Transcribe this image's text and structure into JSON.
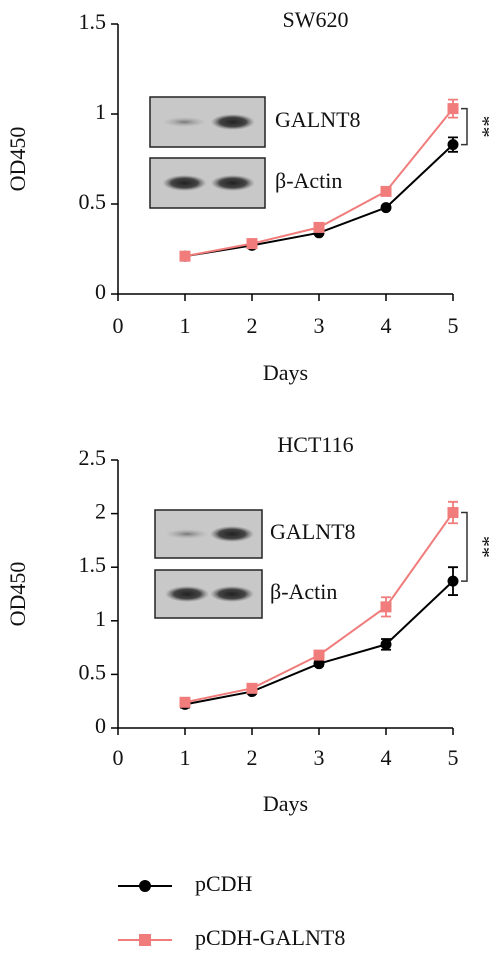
{
  "chart_data": [
    {
      "type": "line",
      "title": "SW620",
      "x_label": "Days",
      "y_label": "OD450",
      "x": [
        1,
        2,
        3,
        4,
        5
      ],
      "xlim": [
        0,
        5
      ],
      "xticks": [
        0,
        1,
        2,
        3,
        4,
        5
      ],
      "ylim": [
        0,
        1.5
      ],
      "yticks": [
        0,
        0.5,
        1,
        1.5
      ],
      "blot_labels": [
        "GALNT8",
        "β-Actin"
      ],
      "significance": "**",
      "series": [
        {
          "name": "pCDH",
          "color": "#000000",
          "marker": "circle",
          "values": [
            0.21,
            0.27,
            0.34,
            0.48,
            0.83
          ],
          "errors": [
            0.02,
            0.01,
            0.01,
            0.01,
            0.04
          ]
        },
        {
          "name": "pCDH-GALNT8",
          "color": "#f07c7c",
          "marker": "square",
          "values": [
            0.21,
            0.28,
            0.37,
            0.57,
            1.03
          ],
          "errors": [
            0.02,
            0.02,
            0.01,
            0.01,
            0.05
          ]
        }
      ]
    },
    {
      "type": "line",
      "title": "HCT116",
      "x_label": "Days",
      "y_label": "OD450",
      "x": [
        1,
        2,
        3,
        4,
        5
      ],
      "xlim": [
        0,
        5
      ],
      "xticks": [
        0,
        1,
        2,
        3,
        4,
        5
      ],
      "ylim": [
        0,
        2.5
      ],
      "yticks": [
        0,
        0.5,
        1,
        1.5,
        2,
        2.5
      ],
      "blot_labels": [
        "GALNT8",
        "β-Actin"
      ],
      "significance": "**",
      "series": [
        {
          "color": "#000000",
          "marker": "circle",
          "values": [
            0.22,
            0.34,
            0.6,
            0.78,
            1.37
          ],
          "errors": [
            0.03,
            0.02,
            0.02,
            0.05,
            0.13
          ]
        },
        {
          "color": "#f07c7c",
          "marker": "square",
          "values": [
            0.24,
            0.37,
            0.68,
            1.13,
            2.01
          ],
          "errors": [
            0.03,
            0.02,
            0.03,
            0.09,
            0.1
          ]
        }
      ]
    }
  ]
}
